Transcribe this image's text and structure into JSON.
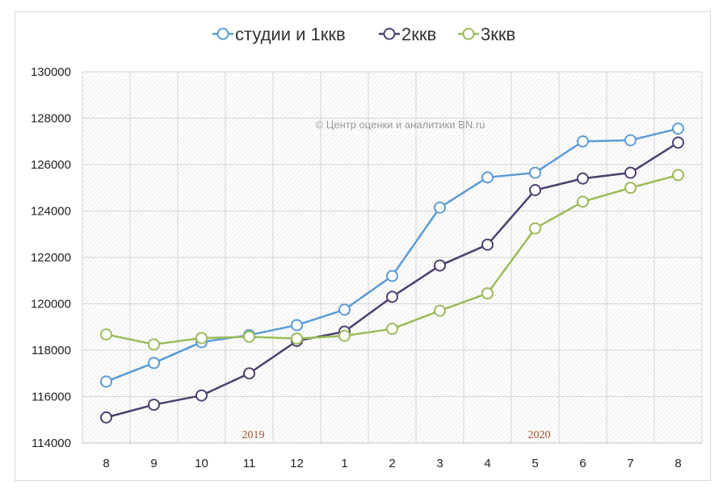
{
  "chart_data": {
    "type": "line",
    "categories": [
      "8",
      "9",
      "10",
      "11",
      "12",
      "1",
      "2",
      "3",
      "4",
      "5",
      "6",
      "7",
      "8"
    ],
    "ylim": [
      114000,
      130000
    ],
    "yticks": [
      "114000",
      "116000",
      "118000",
      "120000",
      "122000",
      "124000",
      "126000",
      "128000",
      "130000"
    ],
    "series": [
      {
        "name": "студии и 1ккв",
        "color": "#5b9bd5",
        "values": [
          116650,
          117450,
          118350,
          118650,
          119080,
          119750,
          121200,
          124150,
          125450,
          125650,
          127000,
          127050,
          127550
        ]
      },
      {
        "name": "2ккв",
        "color": "#4e3f6e",
        "values": [
          115100,
          115650,
          116050,
          117000,
          118400,
          118800,
          120300,
          121650,
          122550,
          124900,
          125400,
          125650,
          126950
        ]
      },
      {
        "name": "3ккв",
        "color": "#9bbb59",
        "values": [
          118680,
          118250,
          118520,
          118580,
          118500,
          118620,
          118920,
          119700,
          120450,
          123250,
          124400,
          125000,
          125550
        ]
      }
    ],
    "year_labels": [
      "2019",
      "2020"
    ],
    "watermark": "© Центр оценки и аналитики BN.ru",
    "legend_position": "top",
    "grid": true
  }
}
